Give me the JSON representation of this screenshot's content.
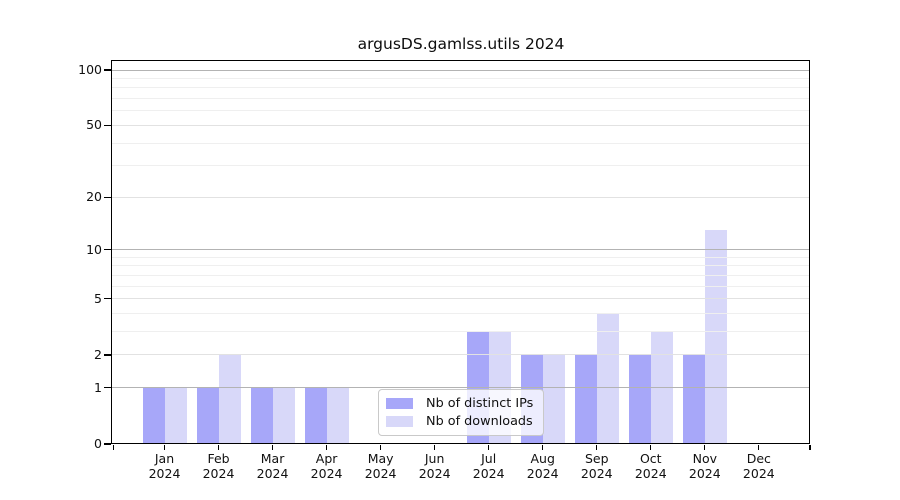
{
  "chart_data": {
    "type": "bar",
    "title": "argusDS.gamlss.utils 2024",
    "categories": [
      "Jan",
      "Feb",
      "Mar",
      "Apr",
      "May",
      "Jun",
      "Jul",
      "Aug",
      "Sep",
      "Oct",
      "Nov",
      "Dec"
    ],
    "year_label": "2024",
    "series": [
      {
        "name": "Nb of distinct IPs",
        "color": "#a7a7f9",
        "values": [
          1,
          1,
          1,
          1,
          0,
          0,
          3,
          2,
          2,
          2,
          2,
          0
        ]
      },
      {
        "name": "Nb of downloads",
        "color": "#d8d8f9",
        "values": [
          1,
          2,
          1,
          1,
          0,
          0,
          3,
          2,
          4,
          3,
          13,
          0
        ]
      }
    ],
    "y_scale": "log1p",
    "y_ticks": [
      0,
      1,
      2,
      5,
      10,
      20,
      50,
      100
    ],
    "y_minor_ticks": [
      3,
      4,
      6,
      7,
      8,
      9,
      30,
      40,
      60,
      70,
      80,
      90
    ],
    "ylim": [
      0,
      112
    ],
    "grid": true,
    "legend_position": "inside-bottom-center"
  }
}
